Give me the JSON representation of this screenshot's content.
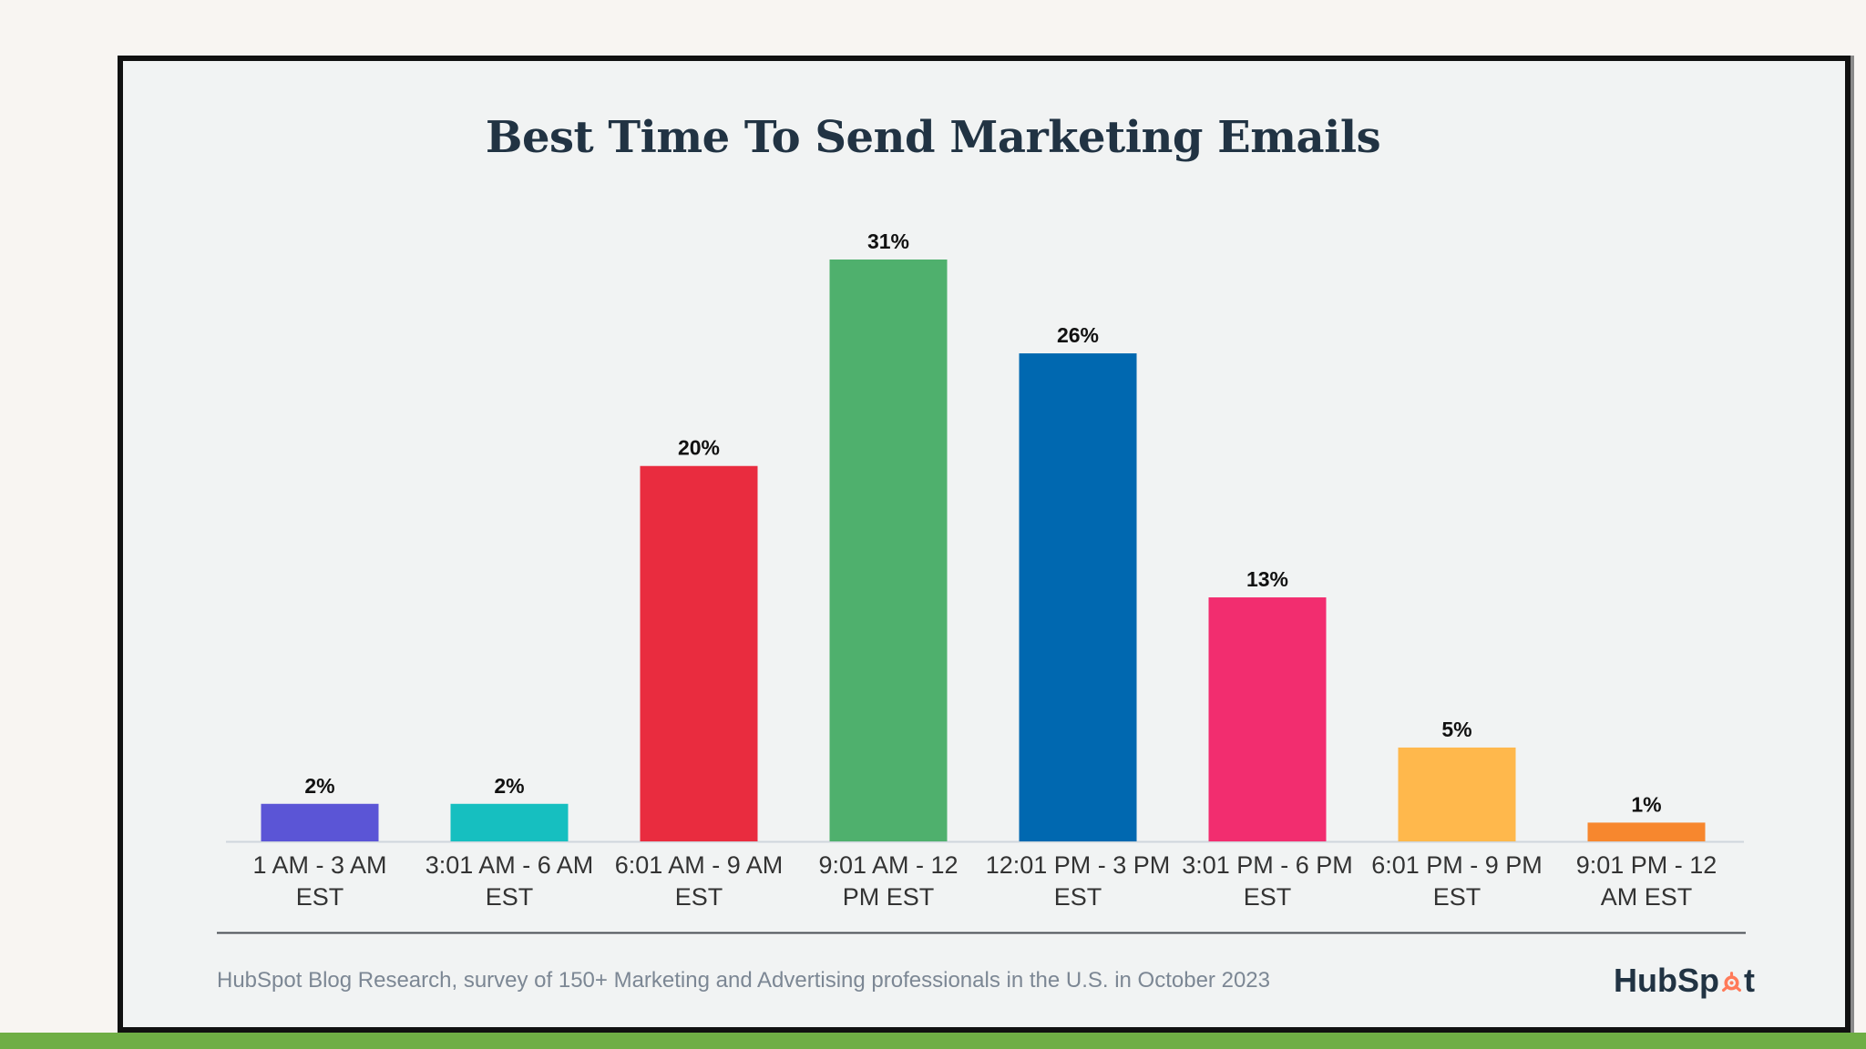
{
  "chart_data": {
    "type": "bar",
    "title": "Best Time To Send Marketing Emails",
    "categories": [
      "1 AM - 3 AM EST",
      "3:01 AM - 6 AM EST",
      "6:01 AM - 9 AM EST",
      "9:01 AM - 12 PM EST",
      "12:01 PM - 3 PM EST",
      "3:01 PM - 6 PM EST",
      "6:01 PM - 9 PM EST",
      "9:01 PM - 12 AM EST"
    ],
    "category_lines": [
      [
        "1 AM - 3 AM",
        "EST"
      ],
      [
        "3:01 AM - 6 AM",
        "EST"
      ],
      [
        "6:01 AM - 9 AM",
        "EST"
      ],
      [
        "9:01 AM - 12",
        "PM EST"
      ],
      [
        "12:01 PM - 3 PM",
        "EST"
      ],
      [
        "3:01 PM - 6 PM",
        "EST"
      ],
      [
        "6:01 PM - 9 PM",
        "EST"
      ],
      [
        "9:01 PM - 12",
        "AM EST"
      ]
    ],
    "values": [
      2,
      2,
      20,
      31,
      26,
      13,
      5,
      1
    ],
    "value_labels": [
      "2%",
      "2%",
      "20%",
      "31%",
      "26%",
      "13%",
      "5%",
      "1%"
    ],
    "unit": "%",
    "colors": [
      "#5b55d6",
      "#16bfc0",
      "#e92c3f",
      "#4fb06d",
      "#0068b0",
      "#f22d6f",
      "#ffb84c",
      "#f7872e"
    ],
    "xlabel": "",
    "ylabel": "",
    "ylim": [
      0,
      31
    ],
    "grid": false,
    "legend": "none"
  },
  "source": "HubSpot Blog Research, survey of 150+ Marketing and Advertising professionals in the U.S. in October 2023",
  "brand": {
    "text_before": "HubSp",
    "text_after": "t",
    "logo_icon": "sprocket-icon",
    "logo_color": "#ff7a59",
    "text_color": "#213343"
  },
  "theme": {
    "background": "#f8f5f2",
    "card_background": "#f1f3f3",
    "axis_line": "#cfd6dc",
    "separator": "#4a4f55",
    "text": "#111111",
    "tick_text": "#333333"
  }
}
